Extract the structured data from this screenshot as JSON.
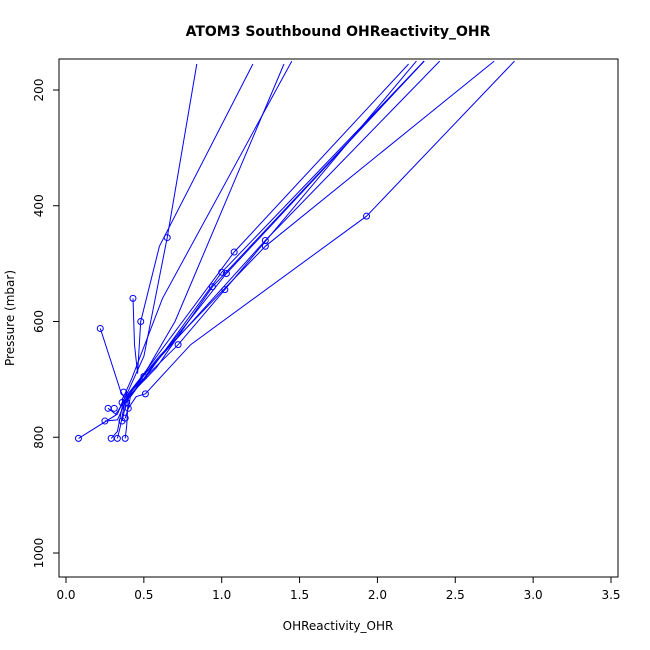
{
  "chart_data": {
    "type": "line",
    "title": "ATOM3 Southbound OHReactivity_OHR",
    "xlabel": "OHReactivity_OHR",
    "ylabel": "Pressure (mbar)",
    "xlim": [
      0,
      3.5
    ],
    "ylim": [
      1000,
      200
    ],
    "y_reversed": true,
    "x_ticks": [
      0.0,
      0.5,
      1.0,
      1.5,
      2.0,
      2.5,
      3.0,
      3.5
    ],
    "x_tick_labels": [
      "0.0",
      "0.5",
      "1.0",
      "1.5",
      "2.0",
      "2.5",
      "3.0",
      "3.5"
    ],
    "y_ticks": [
      200,
      400,
      600,
      800,
      1000
    ],
    "y_tick_labels": [
      "200",
      "400",
      "600",
      "800",
      "1000"
    ],
    "grid": false,
    "series_color": "#0000ff",
    "series": [
      {
        "x": [
          0.08,
          0.33,
          0.36,
          0.4,
          0.5,
          0.65,
          0.84
        ],
        "y": [
          802,
          760,
          740,
          720,
          660,
          455,
          155
        ]
      },
      {
        "x": [
          0.22,
          0.35,
          0.37,
          0.42,
          0.62,
          1.45
        ],
        "y": [
          612,
          720,
          730,
          700,
          560,
          150
        ]
      },
      {
        "x": [
          0.25,
          0.33,
          0.38,
          0.44,
          0.7,
          1.4
        ],
        "y": [
          772,
          770,
          740,
          720,
          600,
          155
        ]
      },
      {
        "x": [
          0.27,
          0.32,
          0.37,
          0.5,
          1.0,
          2.3
        ],
        "y": [
          750,
          760,
          740,
          700,
          515,
          150
        ]
      },
      {
        "x": [
          0.29,
          0.33,
          0.37,
          0.5,
          1.08,
          2.2
        ],
        "y": [
          802,
          790,
          735,
          690,
          480,
          155
        ]
      },
      {
        "x": [
          0.33,
          0.35,
          0.38,
          0.51,
          1.28,
          2.4
        ],
        "y": [
          802,
          780,
          735,
          690,
          460,
          150
        ]
      },
      {
        "x": [
          0.36,
          0.37,
          0.4,
          0.6,
          1.28,
          2.75
        ],
        "y": [
          772,
          760,
          725,
          660,
          470,
          150
        ]
      },
      {
        "x": [
          0.38,
          0.39,
          0.4,
          0.58,
          0.94,
          2.3
        ],
        "y": [
          802,
          780,
          730,
          680,
          540,
          150
        ]
      },
      {
        "x": [
          0.38,
          0.4,
          0.42,
          0.72,
          1.02,
          2.25
        ],
        "y": [
          767,
          750,
          720,
          640,
          545,
          150
        ]
      },
      {
        "x": [
          0.4,
          0.45,
          0.51,
          0.8,
          1.93,
          2.88
        ],
        "y": [
          750,
          730,
          725,
          640,
          418,
          150
        ]
      },
      {
        "x": [
          0.43,
          0.44,
          0.46,
          0.48,
          0.6,
          1.2
        ],
        "y": [
          560,
          640,
          690,
          600,
          470,
          155
        ]
      },
      {
        "x": [
          0.36,
          0.39,
          0.42,
          0.55,
          1.03,
          2.3
        ],
        "y": [
          740,
          735,
          728,
          680,
          517,
          150
        ]
      }
    ],
    "markers": [
      {
        "x": 0.08,
        "y": 802
      },
      {
        "x": 0.22,
        "y": 612
      },
      {
        "x": 0.25,
        "y": 772
      },
      {
        "x": 0.27,
        "y": 750
      },
      {
        "x": 0.29,
        "y": 802
      },
      {
        "x": 0.31,
        "y": 750
      },
      {
        "x": 0.33,
        "y": 802
      },
      {
        "x": 0.36,
        "y": 772
      },
      {
        "x": 0.36,
        "y": 740
      },
      {
        "x": 0.37,
        "y": 722
      },
      {
        "x": 0.38,
        "y": 735
      },
      {
        "x": 0.38,
        "y": 767
      },
      {
        "x": 0.38,
        "y": 802
      },
      {
        "x": 0.39,
        "y": 740
      },
      {
        "x": 0.4,
        "y": 750
      },
      {
        "x": 0.43,
        "y": 560
      },
      {
        "x": 0.48,
        "y": 600
      },
      {
        "x": 0.5,
        "y": 695
      },
      {
        "x": 0.51,
        "y": 725
      },
      {
        "x": 0.65,
        "y": 455
      },
      {
        "x": 0.72,
        "y": 640
      },
      {
        "x": 0.94,
        "y": 540
      },
      {
        "x": 1.0,
        "y": 515
      },
      {
        "x": 1.02,
        "y": 545
      },
      {
        "x": 1.03,
        "y": 517
      },
      {
        "x": 1.08,
        "y": 480
      },
      {
        "x": 1.28,
        "y": 460
      },
      {
        "x": 1.28,
        "y": 470
      },
      {
        "x": 1.93,
        "y": 418
      }
    ]
  }
}
